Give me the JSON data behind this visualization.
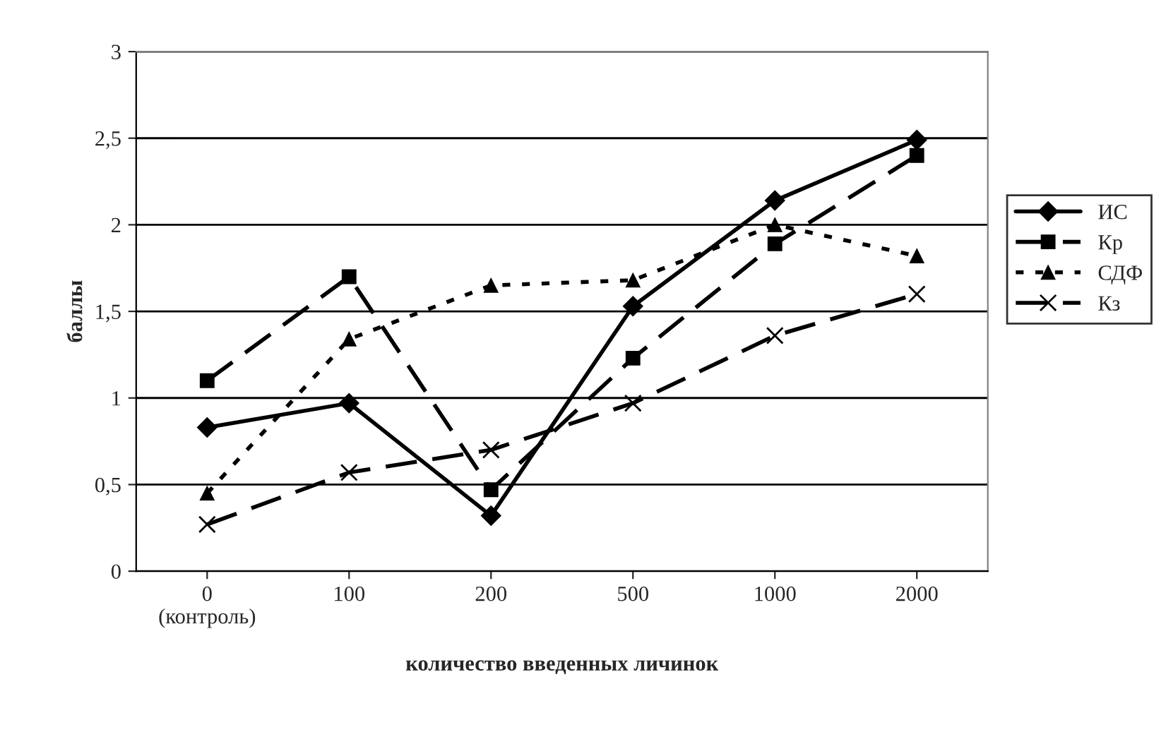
{
  "chart_data": {
    "type": "line",
    "xlabel": "количество введенных личинок",
    "ylabel": "баллы",
    "categories": [
      "0\n(контроль)",
      "100",
      "200",
      "500",
      "1000",
      "2000"
    ],
    "series": [
      {
        "name": "ИС",
        "color": "#000000",
        "marker": "diamond",
        "line_style": "solid",
        "values": [
          0.83,
          0.97,
          0.32,
          1.53,
          2.14,
          2.49
        ]
      },
      {
        "name": "Кр",
        "color": "#000000",
        "marker": "square",
        "line_style": "dashed",
        "values": [
          1.1,
          1.7,
          0.47,
          1.23,
          1.89,
          2.4
        ]
      },
      {
        "name": "СДФ",
        "color": "#000000",
        "marker": "triangle",
        "line_style": "dotted",
        "values": [
          0.45,
          1.34,
          1.65,
          1.68,
          2.0,
          1.82
        ]
      },
      {
        "name": "Кз",
        "color": "#000000",
        "marker": "cross",
        "line_style": "dashed",
        "values": [
          0.27,
          0.57,
          0.7,
          0.97,
          1.36,
          1.6
        ]
      }
    ],
    "ylim": [
      0,
      3
    ],
    "yticks": [
      {
        "value": 0,
        "label": "0"
      },
      {
        "value": 0.5,
        "label": "0,5"
      },
      {
        "value": 1,
        "label": "1"
      },
      {
        "value": 1.5,
        "label": "1,5"
      },
      {
        "value": 2,
        "label": "2"
      },
      {
        "value": 2.5,
        "label": "2,5"
      },
      {
        "value": 3,
        "label": "3"
      }
    ],
    "grid": "y",
    "legend": "right"
  }
}
